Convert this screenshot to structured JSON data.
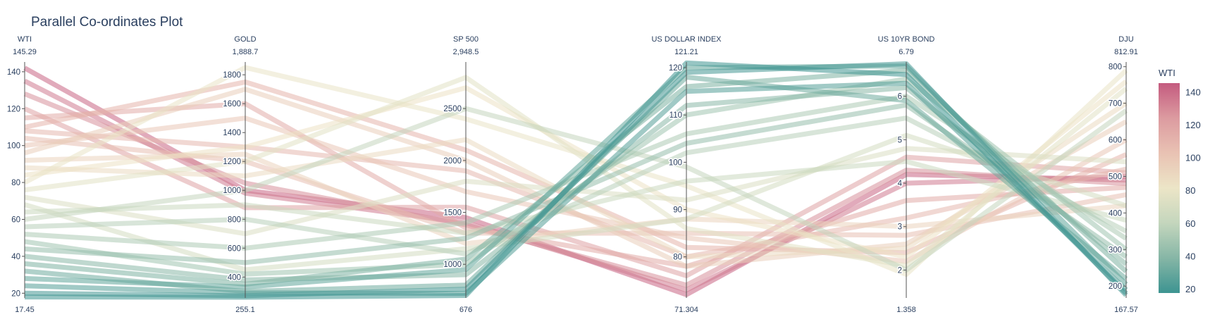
{
  "chart_data": {
    "type": "parallel_coordinates",
    "title": "Parallel Co-ordinates Plot",
    "color_dimension": "WTI",
    "colorscale": [
      "#3d9491",
      "#86b6a6",
      "#c4d6bd",
      "#ece5c7",
      "#e9c2b3",
      "#dc9ba0",
      "#c45b7f"
    ],
    "axes": [
      {
        "name": "WTI",
        "min": 17.45,
        "max": 145.29,
        "min_label": "17.45",
        "max_label": "145.29",
        "ticks": [
          {
            "v": 20,
            "l": "20"
          },
          {
            "v": 40,
            "l": "40"
          },
          {
            "v": 60,
            "l": "60"
          },
          {
            "v": 80,
            "l": "80"
          },
          {
            "v": 100,
            "l": "100"
          },
          {
            "v": 120,
            "l": "120"
          },
          {
            "v": 140,
            "l": "140"
          }
        ]
      },
      {
        "name": "GOLD",
        "min": 255.1,
        "max": 1888.7,
        "min_label": "255.1",
        "max_label": "1,888.7",
        "ticks": [
          {
            "v": 400,
            "l": "400"
          },
          {
            "v": 600,
            "l": "600"
          },
          {
            "v": 800,
            "l": "800"
          },
          {
            "v": 1000,
            "l": "1000"
          },
          {
            "v": 1200,
            "l": "1200"
          },
          {
            "v": 1400,
            "l": "1400"
          },
          {
            "v": 1600,
            "l": "1600"
          },
          {
            "v": 1800,
            "l": "1800"
          }
        ]
      },
      {
        "name": "SP 500",
        "min": 676,
        "max": 2948.5,
        "min_label": "676",
        "max_label": "2,948.5",
        "ticks": [
          {
            "v": 1000,
            "l": "1000"
          },
          {
            "v": 1500,
            "l": "1500"
          },
          {
            "v": 2000,
            "l": "2000"
          },
          {
            "v": 2500,
            "l": "2500"
          }
        ]
      },
      {
        "name": "US DOLLAR INDEX",
        "min": 71.304,
        "max": 121.21,
        "min_label": "71.304",
        "max_label": "121.21",
        "ticks": [
          {
            "v": 80,
            "l": "80"
          },
          {
            "v": 90,
            "l": "90"
          },
          {
            "v": 100,
            "l": "100"
          },
          {
            "v": 110,
            "l": "110"
          },
          {
            "v": 120,
            "l": "120"
          }
        ]
      },
      {
        "name": "US 10YR BOND",
        "min": 1.358,
        "max": 6.79,
        "min_label": "1.358",
        "max_label": "6.79",
        "ticks": [
          {
            "v": 2,
            "l": "2"
          },
          {
            "v": 3,
            "l": "3"
          },
          {
            "v": 4,
            "l": "4"
          },
          {
            "v": 5,
            "l": "5"
          },
          {
            "v": 6,
            "l": "6"
          }
        ]
      },
      {
        "name": "DJU",
        "min": 167.57,
        "max": 812.91,
        "min_label": "167.57",
        "max_label": "812.91",
        "ticks": [
          {
            "v": 200,
            "l": "200"
          },
          {
            "v": 300,
            "l": "300"
          },
          {
            "v": 400,
            "l": "400"
          },
          {
            "v": 500,
            "l": "500"
          },
          {
            "v": 600,
            "l": "600"
          },
          {
            "v": 700,
            "l": "700"
          },
          {
            "v": 800,
            "l": "800"
          }
        ]
      }
    ],
    "colorbar": {
      "title": "WTI",
      "min": 17.45,
      "max": 145.29,
      "ticks": [
        {
          "v": 20,
          "l": "20"
        },
        {
          "v": 40,
          "l": "40"
        },
        {
          "v": 60,
          "l": "60"
        },
        {
          "v": 80,
          "l": "80"
        },
        {
          "v": 100,
          "l": "100"
        },
        {
          "v": 120,
          "l": "120"
        },
        {
          "v": 140,
          "l": "140"
        }
      ]
    },
    "series": [
      {
        "values": [
          142,
          1000,
          1450,
          72,
          4.2,
          490
        ]
      },
      {
        "values": [
          135,
          980,
          1400,
          73,
          4.0,
          500
        ]
      },
      {
        "values": [
          128,
          1050,
          1380,
          74,
          4.3,
          480
        ]
      },
      {
        "values": [
          120,
          880,
          1550,
          76,
          4.6,
          510
        ]
      },
      {
        "values": [
          115,
          1600,
          1350,
          78,
          3.6,
          470
        ]
      },
      {
        "values": [
          110,
          1750,
          2100,
          82,
          2.4,
          560
        ]
      },
      {
        "values": [
          108,
          1300,
          1900,
          80,
          3.2,
          520
        ]
      },
      {
        "values": [
          104,
          1200,
          1300,
          85,
          2.8,
          450
        ]
      },
      {
        "values": [
          100,
          1500,
          1700,
          84,
          2.2,
          600
        ]
      },
      {
        "values": [
          96,
          1700,
          2000,
          78,
          2.6,
          650
        ]
      },
      {
        "values": [
          92,
          1250,
          1200,
          88,
          3.0,
          420
        ]
      },
      {
        "values": [
          88,
          1100,
          2200,
          80,
          2.5,
          700
        ]
      },
      {
        "values": [
          84,
          1300,
          2700,
          90,
          2.3,
          760
        ]
      },
      {
        "values": [
          80,
          1850,
          2400,
          95,
          1.9,
          790
        ]
      },
      {
        "values": [
          76,
          1200,
          2800,
          86,
          2.1,
          740
        ]
      },
      {
        "values": [
          72,
          700,
          1800,
          92,
          4.8,
          540
        ]
      },
      {
        "values": [
          68,
          450,
          1150,
          88,
          5.1,
          420
        ]
      },
      {
        "values": [
          64,
          900,
          1300,
          96,
          4.5,
          380
        ]
      },
      {
        "values": [
          60,
          1000,
          2500,
          99,
          2.0,
          680
        ]
      },
      {
        "values": [
          56,
          800,
          1100,
          102,
          5.5,
          350
        ]
      },
      {
        "values": [
          52,
          600,
          1400,
          106,
          6.0,
          330
        ]
      },
      {
        "values": [
          48,
          420,
          1000,
          110,
          6.4,
          300
        ]
      },
      {
        "values": [
          44,
          500,
          1250,
          104,
          5.8,
          280
        ]
      },
      {
        "values": [
          40,
          380,
          900,
          112,
          6.2,
          260
        ]
      },
      {
        "values": [
          36,
          350,
          1050,
          116,
          6.6,
          240
        ]
      },
      {
        "values": [
          32,
          300,
          800,
          118,
          5.9,
          220
        ]
      },
      {
        "values": [
          28,
          330,
          950,
          120,
          6.7,
          205
        ]
      },
      {
        "values": [
          24,
          290,
          720,
          115,
          6.3,
          190
        ]
      },
      {
        "values": [
          20,
          270,
          760,
          119,
          6.75,
          175
        ]
      },
      {
        "values": [
          18,
          260,
          700,
          121,
          6.5,
          180
        ]
      }
    ]
  }
}
